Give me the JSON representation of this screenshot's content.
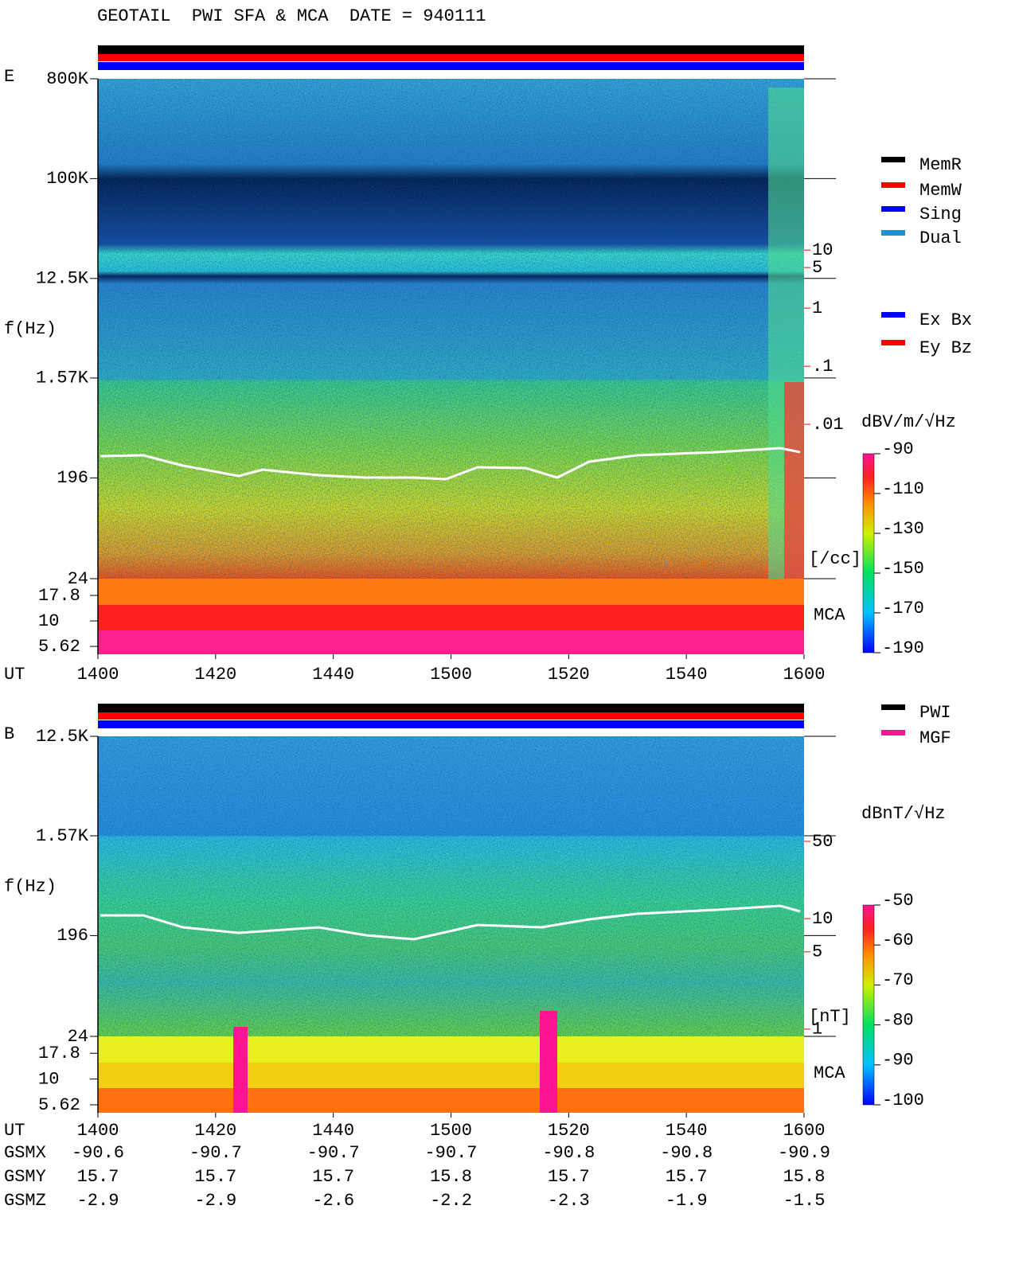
{
  "title": "GEOTAIL  PWI SFA & MCA  DATE = 940111",
  "chart_data": [
    {
      "type": "spectrogram",
      "panel_label": "E",
      "y_label": "f(Hz)",
      "x_label": "UT",
      "x_categories": [
        "1400",
        "1420",
        "1440",
        "1500",
        "1520",
        "1540",
        "1600"
      ],
      "log_y": true,
      "ylim": [
        24,
        800000
      ],
      "yticks": [
        {
          "value": 800000,
          "label": "800K"
        },
        {
          "value": 100000,
          "label": "100K"
        },
        {
          "value": 12500,
          "label": "12.5K"
        },
        {
          "value": 1570,
          "label": "1.57K"
        },
        196,
        24
      ],
      "mca_label": "MCA",
      "mca_ylim": [
        4.7,
        26
      ],
      "mca_yticks": [
        17.8,
        10,
        5.62
      ],
      "y2_label": "[/cc]",
      "y2_color": "#ff0000",
      "y2lim": [
        2.2e-05,
        8900
      ],
      "y2ticks": [
        10,
        5,
        1,
        {
          "value": 0.1,
          "label": ".1"
        },
        {
          "value": 0.01,
          "label": ".01"
        }
      ],
      "colorbar": {
        "label": "dBV/m/√Hz",
        "clim": [
          -190,
          -90
        ],
        "ticks": [
          -90,
          -110,
          -130,
          -150,
          -170,
          -190
        ]
      },
      "legends": [
        [
          {
            "name": "MemR",
            "color": "#000000"
          },
          {
            "name": "MemW",
            "color": "#ff0000"
          },
          {
            "name": "Sing",
            "color": "#0000ff"
          },
          {
            "name": "Dual",
            "color": "#2090d0"
          }
        ],
        [
          {
            "name": "Ex Bx",
            "color": "#0000ff"
          },
          {
            "name": "Ey Bz",
            "color": "#ff0000"
          }
        ]
      ]
    },
    {
      "type": "spectrogram",
      "panel_label": "B",
      "y_label": "f(Hz)",
      "x_label": "UT",
      "x_categories": [
        "1400",
        "1420",
        "1440",
        "1500",
        "1520",
        "1540",
        "1600"
      ],
      "log_y": true,
      "ylim": [
        24,
        12500
      ],
      "yticks": [
        {
          "value": 12500,
          "label": "12.5K"
        },
        {
          "value": 1570,
          "label": "1.57K"
        },
        196,
        24
      ],
      "mca_label": "MCA",
      "mca_ylim": [
        4.7,
        26
      ],
      "mca_yticks": [
        17.8,
        10,
        5.62
      ],
      "y2_label": "[nT]",
      "y2_color": "#ff0000",
      "y2lim": [
        0.86,
        446
      ],
      "y2ticks": [
        50,
        10,
        5,
        1
      ],
      "colorbar": {
        "label": "dBnT/√Hz",
        "clim": [
          -100,
          -50
        ],
        "ticks": [
          -50,
          -60,
          -70,
          -80,
          -90,
          -100
        ]
      },
      "legends": [
        [
          {
            "name": "PWI",
            "color": "#000000"
          },
          {
            "name": "MGF",
            "color": "#ff1493"
          }
        ]
      ]
    }
  ],
  "orbit": {
    "row_labels": [
      "GSMX",
      "GSMY",
      "GSMZ"
    ],
    "rows": [
      [
        -90.6,
        -90.7,
        -90.7,
        -90.7,
        -90.8,
        -90.8,
        -90.9
      ],
      [
        15.7,
        15.7,
        15.7,
        15.8,
        15.7,
        15.7,
        15.8
      ],
      [
        -2.9,
        -2.9,
        -2.6,
        -2.2,
        -2.3,
        -1.9,
        -1.5
      ]
    ]
  }
}
